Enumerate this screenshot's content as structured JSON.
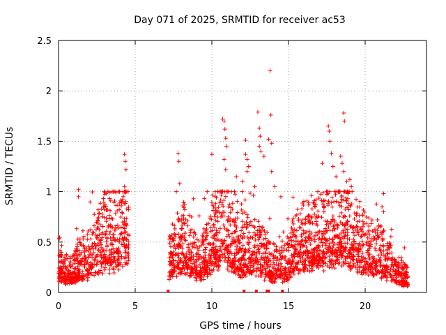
{
  "chart_data": {
    "type": "scatter",
    "title": "Day 071 of 2025, SRMTID for receiver ac53",
    "xlabel": "GPS time / hours",
    "ylabel": "SRMTID / TECUs",
    "xlim": [
      0,
      24
    ],
    "ylim": [
      0,
      2.5
    ],
    "xticks": [
      0,
      5,
      10,
      15,
      20
    ],
    "yticks": [
      0,
      0.5,
      1,
      1.5,
      2,
      2.5
    ],
    "grid": true,
    "marker": "+",
    "series": [
      {
        "name": "SRMTID",
        "color": "#ff0000",
        "segments": [
          {
            "t0": 0.0,
            "t1": 4.6,
            "anchors": [
              [
                0.0,
                0.3
              ],
              [
                0.5,
                0.2
              ],
              [
                1.0,
                0.22
              ],
              [
                1.5,
                0.3
              ],
              [
                2.0,
                0.35
              ],
              [
                2.5,
                0.45
              ],
              [
                3.0,
                0.55
              ],
              [
                3.5,
                0.5
              ],
              [
                4.0,
                0.6
              ],
              [
                4.3,
                0.75
              ],
              [
                4.6,
                0.65
              ]
            ]
          },
          {
            "t0": 7.2,
            "t1": 14.9,
            "anchors": [
              [
                7.2,
                0.3
              ],
              [
                7.8,
                0.45
              ],
              [
                8.3,
                0.5
              ],
              [
                8.8,
                0.35
              ],
              [
                9.3,
                0.3
              ],
              [
                9.8,
                0.45
              ],
              [
                10.3,
                0.6
              ],
              [
                10.8,
                0.7
              ],
              [
                11.3,
                0.5
              ],
              [
                11.8,
                0.4
              ],
              [
                12.3,
                0.45
              ],
              [
                12.8,
                0.4
              ],
              [
                13.3,
                0.35
              ],
              [
                13.8,
                0.3
              ],
              [
                14.3,
                0.25
              ],
              [
                14.9,
                0.3
              ]
            ]
          },
          {
            "t0": 14.9,
            "t1": 22.8,
            "anchors": [
              [
                14.9,
                0.3
              ],
              [
                15.5,
                0.45
              ],
              [
                16.0,
                0.5
              ],
              [
                16.5,
                0.5
              ],
              [
                17.0,
                0.55
              ],
              [
                17.5,
                0.6
              ],
              [
                18.0,
                0.6
              ],
              [
                18.5,
                0.65
              ],
              [
                19.0,
                0.6
              ],
              [
                19.5,
                0.5
              ],
              [
                20.0,
                0.45
              ],
              [
                20.5,
                0.4
              ],
              [
                21.0,
                0.35
              ],
              [
                21.5,
                0.3
              ],
              [
                22.0,
                0.2
              ],
              [
                22.8,
                0.15
              ]
            ]
          }
        ],
        "spikes": [
          [
            4.3,
            1.37
          ],
          [
            4.35,
            1.3
          ],
          [
            4.4,
            1.22
          ],
          [
            4.3,
            1.05
          ],
          [
            1.3,
            1.02
          ],
          [
            1.3,
            0.95
          ],
          [
            3.1,
            0.98
          ],
          [
            7.8,
            1.38
          ],
          [
            7.85,
            1.3
          ],
          [
            7.9,
            1.08
          ],
          [
            8.8,
            0.93
          ],
          [
            10.0,
            1.37
          ],
          [
            10.7,
            1.72
          ],
          [
            10.8,
            1.7
          ],
          [
            10.85,
            1.62
          ],
          [
            10.9,
            1.53
          ],
          [
            10.95,
            1.45
          ],
          [
            10.8,
            1.32
          ],
          [
            10.9,
            1.22
          ],
          [
            11.6,
            1.15
          ],
          [
            12.0,
            1.1
          ],
          [
            12.2,
            1.37
          ],
          [
            12.3,
            1.32
          ],
          [
            12.4,
            1.25
          ],
          [
            12.3,
            1.2
          ],
          [
            12.2,
            1.51
          ],
          [
            12.8,
            1.05
          ],
          [
            13.0,
            1.79
          ],
          [
            13.1,
            1.63
          ],
          [
            13.15,
            1.55
          ],
          [
            13.1,
            1.45
          ],
          [
            13.2,
            1.4
          ],
          [
            13.4,
            1.35
          ],
          [
            13.7,
            1.52
          ],
          [
            13.8,
            2.2
          ],
          [
            13.85,
            1.76
          ],
          [
            13.9,
            1.48
          ],
          [
            13.9,
            1.2
          ],
          [
            14.1,
            1.05
          ],
          [
            14.5,
            0.95
          ],
          [
            16.8,
            0.92
          ],
          [
            17.2,
            1.28
          ],
          [
            17.6,
            1.65
          ],
          [
            17.65,
            1.6
          ],
          [
            17.7,
            1.5
          ],
          [
            17.8,
            1.38
          ],
          [
            17.9,
            1.25
          ],
          [
            18.1,
            1.15
          ],
          [
            18.6,
            1.78
          ],
          [
            18.65,
            1.7
          ],
          [
            18.4,
            1.35
          ],
          [
            18.5,
            1.28
          ],
          [
            18.6,
            1.2
          ],
          [
            18.8,
            1.1
          ],
          [
            19.0,
            1.12
          ],
          [
            19.1,
            1.05
          ],
          [
            21.2,
            0.98
          ],
          [
            21.1,
            0.85
          ],
          [
            21.2,
            0.8
          ],
          [
            20.8,
            0.72
          ]
        ],
        "zeros": [
          7.15,
          12.1,
          12.9,
          13.6,
          13.7,
          14.6
        ]
      }
    ]
  }
}
